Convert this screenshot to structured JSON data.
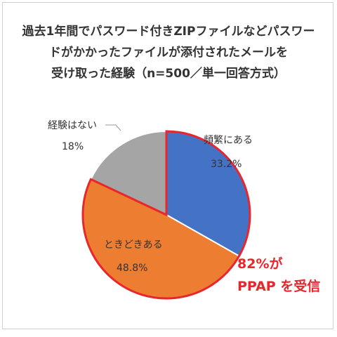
{
  "title_lines": [
    "過去1年間でパスワード付きZIPファイルなどパスワー",
    "ドがかかったファイルが添付されたメールを",
    "受け取った経験（n=500／単一回答方式）"
  ],
  "chart_data": {
    "type": "pie",
    "title": "過去1年間でパスワード付きZIPファイルなどパスワードがかかったファイルが添付されたメールを受け取った経験（n=500／単一回答方式）",
    "slices": [
      {
        "label": "頻繁にある",
        "value": 33.2,
        "value_label": "33.2%",
        "color": "#4472c4"
      },
      {
        "label": "ときどきある",
        "value": 48.8,
        "value_label": "48.8%",
        "color": "#ed7d31"
      },
      {
        "label": "経験はない",
        "value": 18.0,
        "value_label": "18%",
        "color": "#a5a5a5"
      }
    ],
    "highlight": {
      "slices": [
        "頻繁にある",
        "ときどきある"
      ],
      "outline_color": "#e8262b"
    },
    "annotation": {
      "lines": [
        "82%が",
        "PPAP を受信"
      ],
      "color": "#e8262b"
    }
  }
}
